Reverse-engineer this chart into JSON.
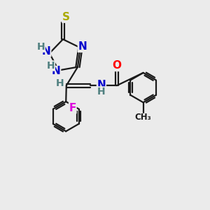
{
  "bg_color": "#ebebeb",
  "bond_color": "#1a1a1a",
  "bond_width": 1.6,
  "atom_colors": {
    "N": "#0000cc",
    "H": "#508080",
    "S": "#aaaa00",
    "O": "#ff0000",
    "F": "#dd00dd",
    "C": "#1a1a1a"
  },
  "font_size": 11,
  "font_size_H": 10
}
